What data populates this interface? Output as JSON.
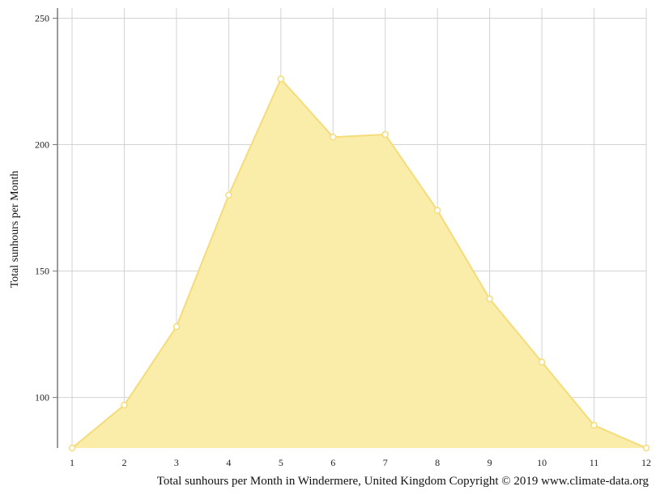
{
  "chart_data": {
    "type": "area",
    "x": [
      1,
      2,
      3,
      4,
      5,
      6,
      7,
      8,
      9,
      10,
      11,
      12
    ],
    "values": [
      80,
      97,
      128,
      180,
      226,
      203,
      204,
      174,
      139,
      114,
      89,
      80
    ],
    "xlabel": "",
    "ylabel": "Total sunhours per Month",
    "caption": "Total sunhours per Month in Windermere, United Kingdom Copyright © 2019 www.climate-data.org",
    "ylim": [
      80,
      254
    ],
    "yticks": [
      100,
      150,
      200,
      250
    ],
    "grid": true,
    "fill_color": "#faeca9",
    "line_color": "#f5dc7a",
    "grid_color": "#d3d3d3",
    "axis_color": "#7a7a7a"
  }
}
